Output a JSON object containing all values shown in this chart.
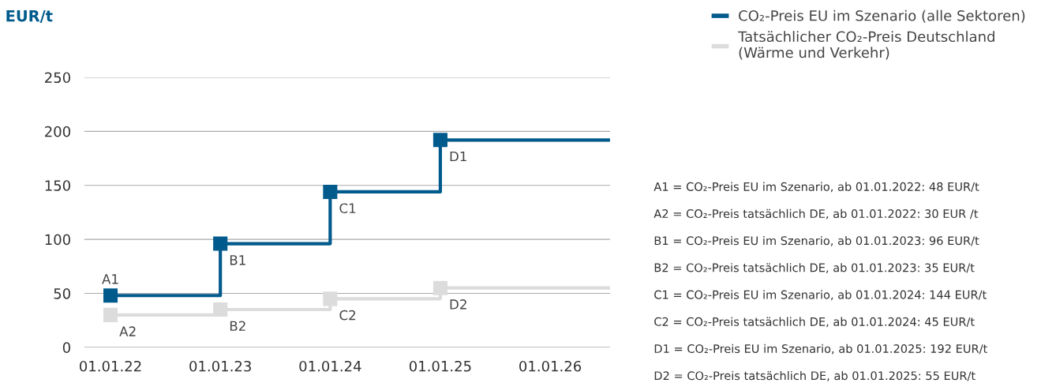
{
  "chart_data": {
    "type": "step",
    "ylabel": "EUR/t",
    "x": [
      "2022-01-01",
      "2023-01-01",
      "2024-01-01",
      "2025-01-01",
      "2026-07-19"
    ],
    "series": [
      {
        "name": "CO₂-Preis EU im Szenario (alle Sektoren)",
        "color": "#005a8c",
        "values": [
          48,
          96,
          144,
          192,
          192
        ]
      },
      {
        "name": "Tatsächlicher CO₂-Preis Deutschland\n(Wärme und Verkehr)",
        "color": "#dcdcdc",
        "values": [
          30,
          35,
          45,
          55,
          55
        ]
      }
    ],
    "xlim": [
      "2021-10-06",
      "2026-07-19"
    ],
    "xticks": [
      {
        "value": "2022-01-01",
        "label": "01.01.22"
      },
      {
        "value": "2023-01-01",
        "label": "01.01.23"
      },
      {
        "value": "2024-01-01",
        "label": "01.01.24"
      },
      {
        "value": "2025-01-01",
        "label": "01.01.25"
      },
      {
        "value": "2026-01-01",
        "label": "01.01.26"
      }
    ],
    "ylim": [
      0,
      250
    ],
    "yticks": [
      0,
      50,
      100,
      150,
      200,
      250
    ],
    "grid": "y",
    "legend": "top right",
    "marker": "square",
    "line_style": "solid",
    "annotations": [
      {
        "text": "A1",
        "x": "2022-01-01",
        "y": 48
      },
      {
        "text": "B1",
        "x": "2023-01-01",
        "y": 96
      },
      {
        "text": "C1",
        "x": "2024-01-01",
        "y": 144
      },
      {
        "text": "D1",
        "x": "2025-01-01",
        "y": 192
      },
      {
        "text": "A2",
        "x": "2022-01-01",
        "y": 30
      },
      {
        "text": "B2",
        "x": "2023-01-01",
        "y": 35
      },
      {
        "text": "C2",
        "x": "2024-01-01",
        "y": 45
      },
      {
        "text": "D2",
        "x": "2025-01-01",
        "y": 55
      },
      "A1 = CO₂-Preis EU im Szenario, ab 01.01.2022: 48 EUR/t",
      "A2 = CO₂-Preis tatsächlich DE, ab 01.01.2022: 30 EUR /t",
      "B1 = CO₂-Preis EU im Szenario, ab 01.01.2023: 96 EUR/t",
      "B2 = CO₂-Preis tatsächlich DE, ab 01.01.2023: 35 EUR/t",
      "C1 = CO₂-Preis EU im Szenario, ab 01.01.2024: 144 EUR/t",
      "C2 = CO₂-Preis tatsächlich DE, ab 01.01.2024: 45 EUR/t",
      "D1 = CO₂-Preis EU im Szenario, ab 01.01.2025: 192 EUR/t",
      "D2 = CO₂-Preis tatsächlich DE, ab 01.01.2025: 55 EUR/t"
    ]
  }
}
